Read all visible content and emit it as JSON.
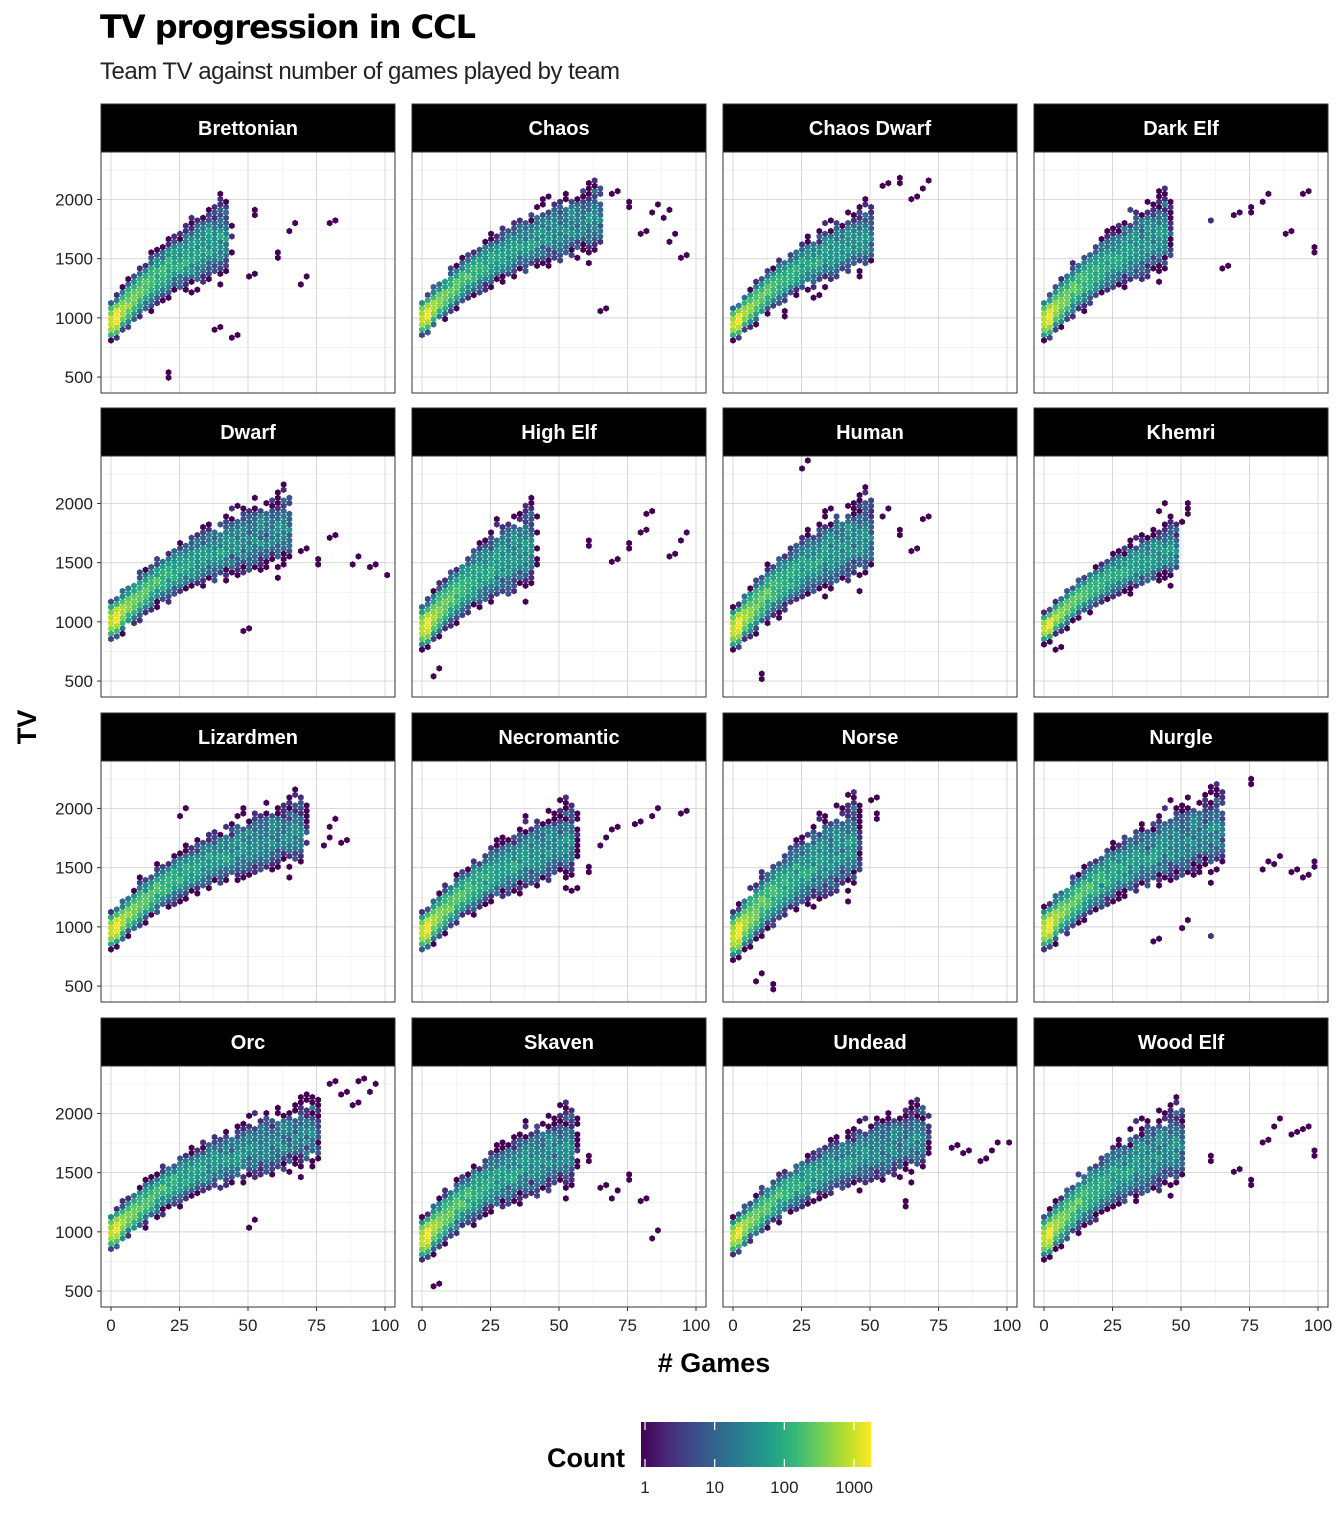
{
  "chart_data": {
    "type": "heatmap",
    "subtype": "hexbin-facets",
    "title": "TV progression in CCL",
    "subtitle": "Team TV against number of games played by team",
    "xlabel": "# Games",
    "ylabel": "TV",
    "xlim": [
      0,
      100
    ],
    "ylim": [
      450,
      2350
    ],
    "x_ticks": [
      0,
      25,
      50,
      75,
      100
    ],
    "y_ticks": [
      500,
      1000,
      1500,
      2000
    ],
    "grid": true,
    "facet_layout": {
      "rows": 4,
      "cols": 4
    },
    "legend": {
      "title": "Count",
      "position": "bottom",
      "scale": "log",
      "ticks": [
        1,
        10,
        100,
        1000
      ],
      "tick_labels": [
        "1",
        "10",
        "100",
        "1000"
      ],
      "range": [
        1,
        2000
      ],
      "colors": [
        "#440154",
        "#482878",
        "#3e4a89",
        "#31688e",
        "#26828e",
        "#1f9e89",
        "#35b779",
        "#6ece58",
        "#b5de2b",
        "#fde725"
      ]
    },
    "facets": [
      {
        "name": "Brettonian",
        "max_games": 42,
        "tv_start": 950,
        "tv_growth": 30,
        "spread": 180,
        "outliers": [
          [
            52,
            1850
          ],
          [
            60,
            1500
          ],
          [
            65,
            1750
          ],
          [
            70,
            1300
          ],
          [
            80,
            1800
          ],
          [
            38,
            900
          ],
          [
            45,
            820
          ],
          [
            20,
            480
          ],
          [
            30,
            1200
          ],
          [
            50,
            1350
          ]
        ]
      },
      {
        "name": "Chaos",
        "max_games": 65,
        "tv_start": 980,
        "tv_growth": 28,
        "spread": 170,
        "outliers": [
          [
            70,
            2050
          ],
          [
            80,
            1700
          ],
          [
            85,
            1900
          ],
          [
            90,
            1650
          ],
          [
            95,
            1500
          ],
          [
            66,
            1050
          ],
          [
            75,
            1950
          ],
          [
            88,
            1850
          ]
        ]
      },
      {
        "name": "Chaos Dwarf",
        "max_games": 50,
        "tv_start": 930,
        "tv_growth": 28,
        "spread": 150,
        "outliers": [
          [
            55,
            2100
          ],
          [
            60,
            2150
          ],
          [
            65,
            2000
          ],
          [
            70,
            2100
          ],
          [
            18,
            1000
          ],
          [
            30,
            1150
          ]
        ]
      },
      {
        "name": "Dark Elf",
        "max_games": 45,
        "tv_start": 960,
        "tv_growth": 30,
        "spread": 190,
        "outliers": [
          [
            60,
            1800
          ],
          [
            70,
            1850
          ],
          [
            80,
            2000
          ],
          [
            88,
            1700
          ],
          [
            95,
            2050
          ],
          [
            98,
            1550
          ],
          [
            65,
            1400
          ],
          [
            75,
            1900
          ]
        ]
      },
      {
        "name": "Dwarf",
        "max_games": 65,
        "tv_start": 990,
        "tv_growth": 26,
        "spread": 180,
        "outliers": [
          [
            80,
            1700
          ],
          [
            88,
            1500
          ],
          [
            95,
            1450
          ],
          [
            100,
            1400
          ],
          [
            48,
            920
          ],
          [
            70,
            1600
          ],
          [
            75,
            1500
          ]
        ]
      },
      {
        "name": "High Elf",
        "max_games": 40,
        "tv_start": 930,
        "tv_growth": 30,
        "spread": 200,
        "outliers": [
          [
            60,
            1650
          ],
          [
            70,
            1500
          ],
          [
            75,
            1620
          ],
          [
            80,
            1750
          ],
          [
            82,
            1900
          ],
          [
            90,
            1550
          ],
          [
            95,
            1700
          ],
          [
            5,
            550
          ]
        ]
      },
      {
        "name": "Human",
        "max_games": 50,
        "tv_start": 920,
        "tv_growth": 30,
        "spread": 200,
        "outliers": [
          [
            55,
            1900
          ],
          [
            60,
            1750
          ],
          [
            65,
            1600
          ],
          [
            70,
            1850
          ],
          [
            25,
            2300
          ],
          [
            10,
            520
          ]
        ]
      },
      {
        "name": "Khemri",
        "max_games": 48,
        "tv_start": 930,
        "tv_growth": 26,
        "spread": 130,
        "outliers": [
          [
            50,
            1850
          ],
          [
            52,
            1950
          ],
          [
            42,
            1950
          ],
          [
            4,
            760
          ]
        ]
      },
      {
        "name": "Lizardmen",
        "max_games": 70,
        "tv_start": 950,
        "tv_growth": 27,
        "spread": 170,
        "outliers": [
          [
            78,
            1700
          ],
          [
            80,
            1850
          ],
          [
            85,
            1700
          ],
          [
            26,
            1950
          ]
        ]
      },
      {
        "name": "Necromantic",
        "max_games": 55,
        "tv_start": 940,
        "tv_growth": 28,
        "spread": 180,
        "outliers": [
          [
            65,
            1700
          ],
          [
            70,
            1800
          ],
          [
            78,
            1850
          ],
          [
            85,
            1950
          ],
          [
            95,
            1950
          ],
          [
            60,
            1450
          ],
          [
            55,
            1300
          ]
        ]
      },
      {
        "name": "Norse",
        "max_games": 45,
        "tv_start": 900,
        "tv_growth": 32,
        "spread": 220,
        "outliers": [
          [
            50,
            2050
          ],
          [
            52,
            1900
          ],
          [
            14,
            480
          ],
          [
            8,
            550
          ]
        ]
      },
      {
        "name": "Nurgle",
        "max_games": 65,
        "tv_start": 960,
        "tv_growth": 28,
        "spread": 200,
        "outliers": [
          [
            75,
            2200
          ],
          [
            80,
            1500
          ],
          [
            85,
            1550
          ],
          [
            90,
            1450
          ],
          [
            95,
            1400
          ],
          [
            98,
            1500
          ],
          [
            60,
            900
          ],
          [
            50,
            1000
          ],
          [
            40,
            870
          ]
        ]
      },
      {
        "name": "Orc",
        "max_games": 75,
        "tv_start": 980,
        "tv_growth": 26,
        "spread": 170,
        "outliers": [
          [
            80,
            2250
          ],
          [
            85,
            2150
          ],
          [
            90,
            2250
          ],
          [
            95,
            2200
          ],
          [
            88,
            2050
          ],
          [
            50,
            1050
          ],
          [
            70,
            1850
          ]
        ]
      },
      {
        "name": "Skaven",
        "max_games": 55,
        "tv_start": 920,
        "tv_growth": 28,
        "spread": 200,
        "outliers": [
          [
            60,
            1600
          ],
          [
            65,
            1350
          ],
          [
            70,
            1300
          ],
          [
            75,
            1450
          ],
          [
            80,
            1250
          ],
          [
            85,
            950
          ],
          [
            5,
            530
          ]
        ]
      },
      {
        "name": "Undead",
        "max_games": 70,
        "tv_start": 940,
        "tv_growth": 27,
        "spread": 170,
        "outliers": [
          [
            80,
            1700
          ],
          [
            85,
            1650
          ],
          [
            90,
            1600
          ],
          [
            95,
            1700
          ],
          [
            100,
            1750
          ],
          [
            62,
            1200
          ]
        ]
      },
      {
        "name": "Wood Elf",
        "max_games": 50,
        "tv_start": 930,
        "tv_growth": 30,
        "spread": 200,
        "outliers": [
          [
            60,
            1600
          ],
          [
            70,
            1500
          ],
          [
            80,
            1750
          ],
          [
            85,
            1900
          ],
          [
            90,
            1800
          ],
          [
            95,
            1850
          ],
          [
            98,
            1650
          ],
          [
            75,
            1400
          ]
        ]
      }
    ]
  }
}
